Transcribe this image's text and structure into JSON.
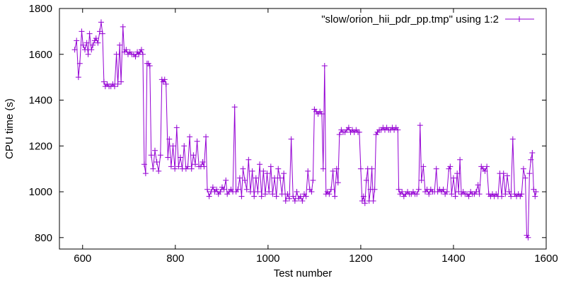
{
  "chart_data": {
    "type": "line",
    "title": "",
    "xlabel": "Test number",
    "ylabel": "CPU time (s)",
    "xlim": [
      550,
      1600
    ],
    "ylim": [
      750,
      1800
    ],
    "xticks": [
      600,
      800,
      1000,
      1200,
      1400,
      1600
    ],
    "yticks": [
      800,
      1000,
      1200,
      1400,
      1600,
      1800
    ],
    "grid": false,
    "legend_position": "top-right",
    "series": [
      {
        "name": "\"slow/orion_hii_pdr_pp.tmp\" using 1:2",
        "color": "#9400d3",
        "marker": "plus",
        "line_style": "linespoints",
        "points": [
          [
            583,
            1620
          ],
          [
            587,
            1660
          ],
          [
            591,
            1500
          ],
          [
            594,
            1560
          ],
          [
            598,
            1700
          ],
          [
            601,
            1640
          ],
          [
            605,
            1620
          ],
          [
            609,
            1650
          ],
          [
            612,
            1600
          ],
          [
            615,
            1690
          ],
          [
            619,
            1620
          ],
          [
            622,
            1640
          ],
          [
            626,
            1660
          ],
          [
            629,
            1670
          ],
          [
            633,
            1650
          ],
          [
            637,
            1700
          ],
          [
            640,
            1740
          ],
          [
            643,
            1690
          ],
          [
            646,
            1480
          ],
          [
            649,
            1460
          ],
          [
            653,
            1470
          ],
          [
            657,
            1460
          ],
          [
            661,
            1460
          ],
          [
            665,
            1470
          ],
          [
            669,
            1460
          ],
          [
            673,
            1600
          ],
          [
            676,
            1470
          ],
          [
            680,
            1640
          ],
          [
            683,
            1480
          ],
          [
            687,
            1720
          ],
          [
            690,
            1610
          ],
          [
            694,
            1620
          ],
          [
            698,
            1600
          ],
          [
            702,
            1610
          ],
          [
            706,
            1600
          ],
          [
            710,
            1600
          ],
          [
            714,
            1590
          ],
          [
            718,
            1610
          ],
          [
            721,
            1600
          ],
          [
            724,
            1610
          ],
          [
            727,
            1620
          ],
          [
            730,
            1600
          ],
          [
            733,
            1120
          ],
          [
            736,
            1080
          ],
          [
            739,
            1560
          ],
          [
            742,
            1560
          ],
          [
            745,
            1550
          ],
          [
            748,
            1160
          ],
          [
            752,
            1100
          ],
          [
            756,
            1180
          ],
          [
            760,
            1130
          ],
          [
            764,
            1090
          ],
          [
            768,
            1160
          ],
          [
            771,
            1490
          ],
          [
            774,
            1480
          ],
          [
            777,
            1490
          ],
          [
            780,
            1470
          ],
          [
            784,
            1150
          ],
          [
            787,
            1230
          ],
          [
            791,
            1110
          ],
          [
            795,
            1200
          ],
          [
            799,
            1100
          ],
          [
            803,
            1280
          ],
          [
            807,
            1110
          ],
          [
            811,
            1150
          ],
          [
            815,
            1100
          ],
          [
            819,
            1200
          ],
          [
            823,
            1100
          ],
          [
            827,
            1110
          ],
          [
            831,
            1240
          ],
          [
            835,
            1100
          ],
          [
            839,
            1160
          ],
          [
            843,
            1120
          ],
          [
            847,
            1220
          ],
          [
            851,
            1110
          ],
          [
            855,
            1110
          ],
          [
            859,
            1130
          ],
          [
            862,
            1110
          ],
          [
            866,
            1240
          ],
          [
            869,
            1010
          ],
          [
            873,
            980
          ],
          [
            877,
            1000
          ],
          [
            881,
            1020
          ],
          [
            885,
            1000
          ],
          [
            889,
            1010
          ],
          [
            893,
            990
          ],
          [
            897,
            1000
          ],
          [
            901,
            1020
          ],
          [
            905,
            1010
          ],
          [
            909,
            1050
          ],
          [
            912,
            990
          ],
          [
            916,
            1000
          ],
          [
            920,
            1010
          ],
          [
            924,
            1000
          ],
          [
            928,
            1370
          ],
          [
            931,
            1000
          ],
          [
            935,
            1010
          ],
          [
            939,
            1060
          ],
          [
            943,
            980
          ],
          [
            946,
            1100
          ],
          [
            950,
            1050
          ],
          [
            954,
            1010
          ],
          [
            958,
            1140
          ],
          [
            962,
            1000
          ],
          [
            966,
            1090
          ],
          [
            970,
            980
          ],
          [
            974,
            1060
          ],
          [
            978,
            1000
          ],
          [
            982,
            1120
          ],
          [
            986,
            980
          ],
          [
            990,
            1090
          ],
          [
            994,
            990
          ],
          [
            998,
            1080
          ],
          [
            1002,
            1000
          ],
          [
            1006,
            1110
          ],
          [
            1010,
            990
          ],
          [
            1014,
            1060
          ],
          [
            1018,
            980
          ],
          [
            1022,
            1100
          ],
          [
            1026,
            1060
          ],
          [
            1030,
            990
          ],
          [
            1034,
            1080
          ],
          [
            1038,
            960
          ],
          [
            1042,
            990
          ],
          [
            1046,
            970
          ],
          [
            1050,
            1230
          ],
          [
            1054,
            980
          ],
          [
            1058,
            960
          ],
          [
            1062,
            1000
          ],
          [
            1066,
            970
          ],
          [
            1070,
            980
          ],
          [
            1074,
            960
          ],
          [
            1078,
            990
          ],
          [
            1082,
            980
          ],
          [
            1086,
            1090
          ],
          [
            1090,
            1010
          ],
          [
            1094,
            1000
          ],
          [
            1097,
            1050
          ],
          [
            1100,
            1360
          ],
          [
            1104,
            1350
          ],
          [
            1108,
            1340
          ],
          [
            1112,
            1350
          ],
          [
            1116,
            1340
          ],
          [
            1119,
            1100
          ],
          [
            1122,
            1550
          ],
          [
            1125,
            990
          ],
          [
            1128,
            1000
          ],
          [
            1132,
            990
          ],
          [
            1136,
            1010
          ],
          [
            1140,
            1090
          ],
          [
            1144,
            980
          ],
          [
            1148,
            1100
          ],
          [
            1151,
            1040
          ],
          [
            1154,
            1250
          ],
          [
            1158,
            1270
          ],
          [
            1162,
            1260
          ],
          [
            1166,
            1260
          ],
          [
            1170,
            1270
          ],
          [
            1174,
            1280
          ],
          [
            1178,
            1260
          ],
          [
            1182,
            1270
          ],
          [
            1186,
            1260
          ],
          [
            1190,
            1270
          ],
          [
            1194,
            1260
          ],
          [
            1197,
            1260
          ],
          [
            1200,
            1100
          ],
          [
            1203,
            960
          ],
          [
            1206,
            980
          ],
          [
            1209,
            950
          ],
          [
            1212,
            1050
          ],
          [
            1215,
            1100
          ],
          [
            1218,
            960
          ],
          [
            1221,
            1010
          ],
          [
            1224,
            1100
          ],
          [
            1227,
            960
          ],
          [
            1230,
            1010
          ],
          [
            1233,
            1250
          ],
          [
            1236,
            1260
          ],
          [
            1240,
            1270
          ],
          [
            1244,
            1270
          ],
          [
            1248,
            1280
          ],
          [
            1252,
            1270
          ],
          [
            1256,
            1280
          ],
          [
            1260,
            1270
          ],
          [
            1264,
            1270
          ],
          [
            1268,
            1280
          ],
          [
            1272,
            1270
          ],
          [
            1276,
            1280
          ],
          [
            1280,
            1270
          ],
          [
            1282,
            1010
          ],
          [
            1285,
            990
          ],
          [
            1289,
            1000
          ],
          [
            1293,
            980
          ],
          [
            1297,
            990
          ],
          [
            1301,
            1000
          ],
          [
            1305,
            990
          ],
          [
            1309,
            990
          ],
          [
            1313,
            1000
          ],
          [
            1317,
            990
          ],
          [
            1321,
            990
          ],
          [
            1325,
            1010
          ],
          [
            1328,
            1290
          ],
          [
            1331,
            1050
          ],
          [
            1335,
            1110
          ],
          [
            1339,
            1000
          ],
          [
            1343,
            1010
          ],
          [
            1347,
            990
          ],
          [
            1351,
            1010
          ],
          [
            1355,
            1000
          ],
          [
            1359,
            1000
          ],
          [
            1363,
            1100
          ],
          [
            1366,
            1000
          ],
          [
            1370,
            1010
          ],
          [
            1374,
            1000
          ],
          [
            1378,
            1010
          ],
          [
            1382,
            990
          ],
          [
            1386,
            1000
          ],
          [
            1390,
            1100
          ],
          [
            1393,
            1110
          ],
          [
            1396,
            990
          ],
          [
            1400,
            1060
          ],
          [
            1404,
            980
          ],
          [
            1408,
            1080
          ],
          [
            1411,
            1000
          ],
          [
            1414,
            1140
          ],
          [
            1417,
            990
          ],
          [
            1421,
            1000
          ],
          [
            1425,
            990
          ],
          [
            1429,
            990
          ],
          [
            1433,
            980
          ],
          [
            1437,
            1000
          ],
          [
            1441,
            990
          ],
          [
            1445,
            990
          ],
          [
            1449,
            1000
          ],
          [
            1453,
            1030
          ],
          [
            1456,
            990
          ],
          [
            1460,
            1110
          ],
          [
            1464,
            1100
          ],
          [
            1468,
            1090
          ],
          [
            1472,
            1110
          ],
          [
            1476,
            990
          ],
          [
            1480,
            980
          ],
          [
            1484,
            990
          ],
          [
            1488,
            980
          ],
          [
            1492,
            990
          ],
          [
            1496,
            980
          ],
          [
            1500,
            1080
          ],
          [
            1504,
            980
          ],
          [
            1508,
            1080
          ],
          [
            1512,
            990
          ],
          [
            1516,
            1070
          ],
          [
            1520,
            1000
          ],
          [
            1524,
            980
          ],
          [
            1528,
            1230
          ],
          [
            1532,
            990
          ],
          [
            1536,
            980
          ],
          [
            1540,
            990
          ],
          [
            1544,
            980
          ],
          [
            1547,
            990
          ],
          [
            1551,
            1100
          ],
          [
            1555,
            1060
          ],
          [
            1558,
            810
          ],
          [
            1561,
            800
          ],
          [
            1564,
            1080
          ],
          [
            1567,
            1140
          ],
          [
            1570,
            1170
          ],
          [
            1573,
            1010
          ],
          [
            1576,
            980
          ],
          [
            1578,
            1000
          ]
        ]
      }
    ]
  }
}
